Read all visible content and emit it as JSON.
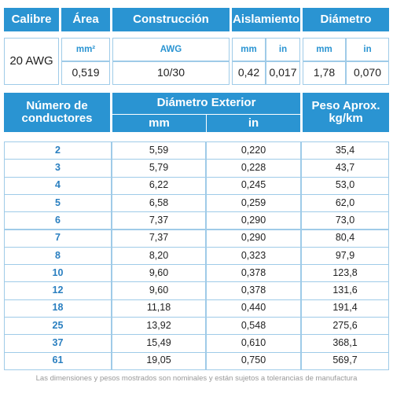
{
  "spec_table": {
    "headers": [
      "Calibre",
      "Área",
      "Construcción",
      "Aislamiento",
      "Diámetro"
    ],
    "gauge": "20 AWG",
    "units": [
      "mm²",
      "AWG",
      "mm",
      "in",
      "mm",
      "in"
    ],
    "values": [
      "0,519",
      "10/30",
      "0,42",
      "0,017",
      "1,78",
      "0,070"
    ]
  },
  "conductor_table": {
    "headers": [
      "Número de conductores",
      "Diámetro Exterior",
      "Peso Aprox. kg/km"
    ],
    "subheaders": [
      "mm",
      "in"
    ],
    "rows": [
      [
        "2",
        "5,59",
        "0,220",
        "35,4"
      ],
      [
        "3",
        "5,79",
        "0,228",
        "43,7"
      ],
      [
        "4",
        "6,22",
        "0,245",
        "53,0"
      ],
      [
        "5",
        "6,58",
        "0,259",
        "62,0"
      ],
      [
        "6",
        "7,37",
        "0,290",
        "73,0"
      ],
      [
        "7",
        "7,37",
        "0,290",
        "80,4"
      ],
      [
        "8",
        "8,20",
        "0,323",
        "97,9"
      ],
      [
        "10",
        "9,60",
        "0,378",
        "123,8"
      ],
      [
        "12",
        "9,60",
        "0,378",
        "131,6"
      ],
      [
        "18",
        "11,18",
        "0,440",
        "191,4"
      ],
      [
        "25",
        "13,92",
        "0,548",
        "275,6"
      ],
      [
        "37",
        "15,49",
        "0,610",
        "368,1"
      ],
      [
        "61",
        "19,05",
        "0,750",
        "569,7"
      ]
    ]
  },
  "footnote": "Las dimensiones y pesos mostrados son nominales y están sujetos a tolerancias de manufactura"
}
